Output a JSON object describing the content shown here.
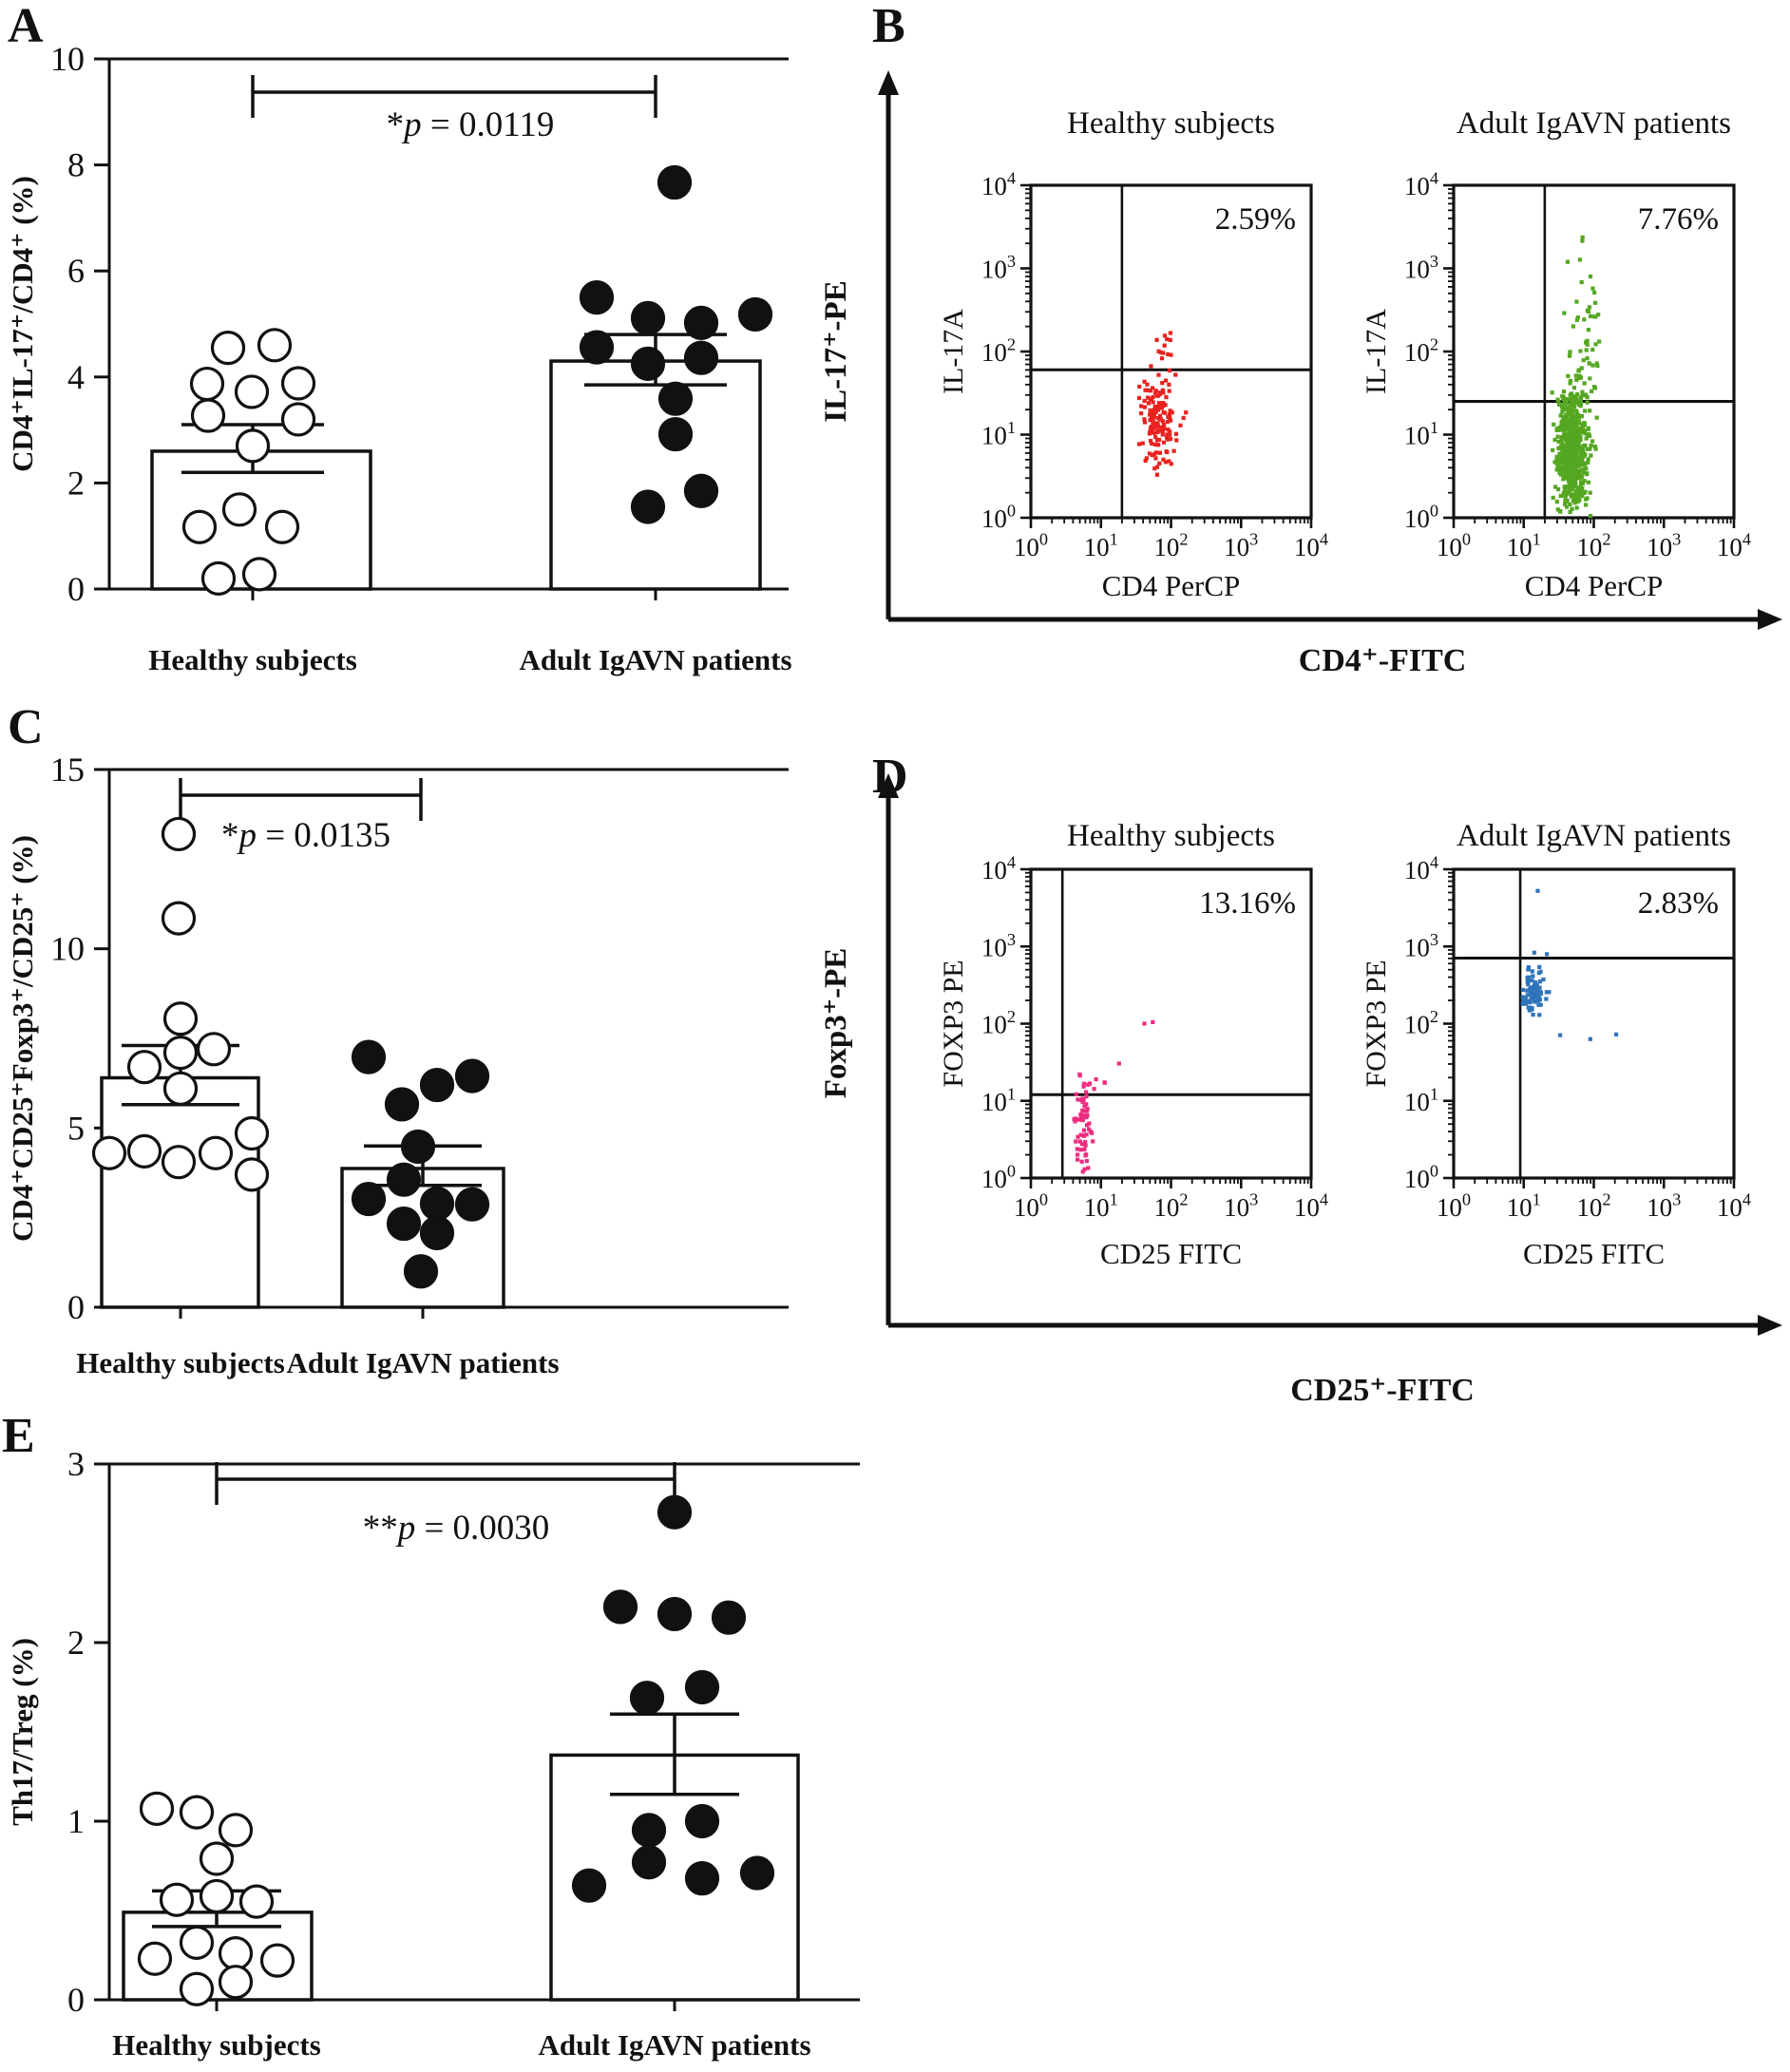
{
  "figure_background": "#ffffff",
  "ink_color": "#111111",
  "chart_data": [
    {
      "id": "A",
      "panel_letter": "A",
      "type": "scatter",
      "subtype": "bar-with-points",
      "ylabel": "CD4⁺IL-17⁺/CD4⁺ (%)",
      "ylim": [
        0,
        10
      ],
      "yticks": [
        0,
        2,
        4,
        6,
        8,
        10
      ],
      "grid": false,
      "significance": {
        "stars": "*",
        "variable": "p",
        "rest": " = 0.0119",
        "text": "*p = 0.0119"
      },
      "categories": [
        "Healthy subjects",
        "Adult IgAVN patients"
      ],
      "series": [
        {
          "name": "Healthy subjects",
          "marker": "open",
          "mean": 2.6,
          "sem_low": 2.2,
          "sem_high": 3.1,
          "values": [
            4.55,
            4.6,
            3.87,
            3.72,
            3.88,
            3.27,
            3.2,
            2.7,
            1.5,
            1.17,
            1.17,
            0.28,
            0.2
          ],
          "x_offsets": [
            -26,
            23,
            -48,
            -1,
            48,
            -47,
            48,
            0,
            -14,
            -56,
            31,
            7,
            -36
          ]
        },
        {
          "name": "Adult IgAVN patients",
          "marker": "filled",
          "mean": 4.3,
          "sem_low": 3.85,
          "sem_high": 4.8,
          "values": [
            7.67,
            5.5,
            5.18,
            5.11,
            5.02,
            4.56,
            4.36,
            4.25,
            3.59,
            2.92,
            1.85,
            1.55
          ],
          "x_offsets": [
            20,
            -62,
            105,
            -8,
            48,
            -62,
            48,
            -8,
            21,
            21,
            48,
            -8
          ]
        }
      ]
    },
    {
      "id": "B",
      "panel_letter": "B",
      "type": "scatter",
      "subtype": "flow-cytometry",
      "outer_ylabel": "IL-17⁺-PE",
      "outer_xlabel": "CD4⁺-FITC",
      "log_decades": [
        0,
        1,
        2,
        3,
        4
      ],
      "plots": [
        {
          "title": "Healthy subjects",
          "percent": "2.59%",
          "xlabel": "CD4 PerCP",
          "ylabel": "IL-17A",
          "color": "#e8231f",
          "gate_x_log": 1.3,
          "gate_y_log": 1.78,
          "cluster": {
            "seed": 7,
            "n": 150,
            "x_mean": 1.82,
            "x_sd": 0.13,
            "x_min": 1.45,
            "x_max": 2.28,
            "y_mean": 1.22,
            "y_sd": 0.27,
            "y_min": 0.45,
            "y_max": 1.72,
            "tails": [
              {
                "n": 14,
                "x_mean": 1.93,
                "x_sd": 0.1,
                "y_min": 1.72,
                "y_max": 2.25
              }
            ],
            "extras": []
          }
        },
        {
          "title": "Adult IgAVN patients",
          "percent": "7.76%",
          "xlabel": "CD4 PerCP",
          "ylabel": "IL-17A",
          "color": "#55a722",
          "gate_x_log": 1.3,
          "gate_y_log": 1.4,
          "cluster": {
            "seed": 11,
            "n": 620,
            "x_mean": 1.7,
            "x_sd": 0.11,
            "x_min": 1.38,
            "x_max": 2.1,
            "y_mean": 0.82,
            "y_sd": 0.4,
            "y_min": 0.02,
            "y_max": 1.52,
            "tails": [
              {
                "n": 50,
                "x_mean": 1.86,
                "x_sd": 0.12,
                "y_min": 1.52,
                "y_max": 2.6
              },
              {
                "n": 8,
                "x_mean": 1.88,
                "x_sd": 0.1,
                "y_min": 2.6,
                "y_max": 3.45
              }
            ],
            "extras": []
          }
        }
      ]
    },
    {
      "id": "C",
      "panel_letter": "C",
      "type": "scatter",
      "subtype": "bar-with-points",
      "ylabel": "CD4⁺CD25⁺Foxp3⁺/CD25⁺ (%)",
      "ylim": [
        0,
        15
      ],
      "yticks": [
        0,
        5,
        10,
        15
      ],
      "grid": false,
      "significance": {
        "stars": "*",
        "variable": "p",
        "rest": " = 0.0135",
        "text": "*p = 0.0135"
      },
      "categories": [
        "Healthy subjects",
        "Adult IgAVN patients"
      ],
      "series": [
        {
          "name": "Healthy subjects",
          "marker": "open",
          "mean": 6.4,
          "sem_low": 5.65,
          "sem_high": 7.3,
          "values": [
            13.2,
            10.85,
            8.05,
            7.2,
            7.1,
            6.7,
            6.1,
            4.85,
            4.35,
            4.3,
            4.3,
            4.05,
            3.7
          ],
          "x_offsets": [
            -2,
            -2,
            0,
            35,
            0,
            -38,
            0,
            75,
            -38,
            -75,
            37,
            -2,
            75
          ]
        },
        {
          "name": "Adult IgAVN patients",
          "marker": "filled",
          "mean": 3.87,
          "sem_low": 3.4,
          "sem_high": 4.5,
          "values": [
            6.98,
            6.45,
            6.2,
            5.66,
            4.48,
            3.56,
            3.02,
            2.89,
            2.87,
            2.33,
            2.07,
            1.0
          ],
          "x_offsets": [
            -57,
            52,
            15,
            -22,
            -5,
            -20,
            -57,
            15,
            52,
            -20,
            15,
            -2
          ]
        }
      ]
    },
    {
      "id": "D",
      "panel_letter": "D",
      "type": "scatter",
      "subtype": "flow-cytometry",
      "outer_ylabel": "Foxp3⁺-PE",
      "outer_xlabel": "CD25⁺-FITC",
      "log_decades": [
        0,
        1,
        2,
        3,
        4
      ],
      "plots": [
        {
          "title": "Healthy subjects",
          "percent": "13.16%",
          "xlabel": "CD25 FITC",
          "ylabel": "FOXP3 PE",
          "color": "#ee2d80",
          "gate_x_log": 0.45,
          "gate_y_log": 1.08,
          "cluster": {
            "seed": 23,
            "n": 62,
            "x_mean": 0.73,
            "x_sd": 0.07,
            "x_min": 0.58,
            "x_max": 1.05,
            "y_mean": 0.72,
            "y_sd": 0.42,
            "y_min": 0.03,
            "y_max": 1.42,
            "tails": [
              {
                "n": 6,
                "x_mean": 1.05,
                "x_sd": 0.18,
                "y_min": 1.15,
                "y_max": 1.75
              }
            ],
            "extras": [
              [
                1.62,
                2.0
              ],
              [
                1.74,
                2.02
              ]
            ]
          }
        },
        {
          "title": "Adult IgAVN patients",
          "percent": "2.83%",
          "xlabel": "CD25 FITC",
          "ylabel": "FOXP3 PE",
          "color": "#2f74ba",
          "gate_x_log": 0.95,
          "gate_y_log": 2.85,
          "cluster": {
            "seed": 31,
            "n": 88,
            "x_mean": 1.13,
            "x_sd": 0.08,
            "x_min": 0.98,
            "x_max": 1.42,
            "y_mean": 2.42,
            "y_sd": 0.15,
            "y_min": 2.02,
            "y_max": 2.78,
            "tails": [],
            "extras": [
              [
                1.2,
                3.72
              ],
              [
                1.52,
                1.85
              ],
              [
                1.95,
                1.8
              ],
              [
                2.32,
                1.86
              ],
              [
                1.15,
                2.92
              ],
              [
                1.33,
                2.9
              ]
            ]
          }
        }
      ]
    },
    {
      "id": "E",
      "panel_letter": "E",
      "type": "scatter",
      "subtype": "bar-with-points",
      "ylabel": "Th17/Treg (%)",
      "ylim": [
        0,
        3
      ],
      "yticks": [
        0,
        1,
        2,
        3
      ],
      "grid": false,
      "significance": {
        "stars": "**",
        "variable": "p",
        "rest": " = 0.0030",
        "text": "**p = 0.0030"
      },
      "categories": [
        "Healthy subjects",
        "Adult IgAVN patients"
      ],
      "series": [
        {
          "name": "Healthy subjects",
          "marker": "open",
          "mean": 0.49,
          "sem_low": 0.41,
          "sem_high": 0.61,
          "values": [
            1.07,
            1.05,
            0.95,
            0.79,
            0.58,
            0.56,
            0.55,
            0.32,
            0.26,
            0.23,
            0.22,
            0.1,
            0.06
          ],
          "x_offsets": [
            -63,
            -21,
            20,
            0,
            0,
            -42,
            42,
            -21,
            20,
            -65,
            64,
            20,
            -21
          ]
        },
        {
          "name": "Adult IgAVN patients",
          "marker": "filled",
          "mean": 1.37,
          "sem_low": 1.15,
          "sem_high": 1.6,
          "values": [
            2.73,
            2.2,
            2.16,
            2.14,
            1.75,
            1.69,
            1.0,
            0.95,
            0.77,
            0.71,
            0.68,
            0.64
          ],
          "x_offsets": [
            0,
            -57,
            0,
            57,
            29,
            -29,
            29,
            -27,
            -27,
            87,
            29,
            -90
          ]
        }
      ]
    }
  ]
}
